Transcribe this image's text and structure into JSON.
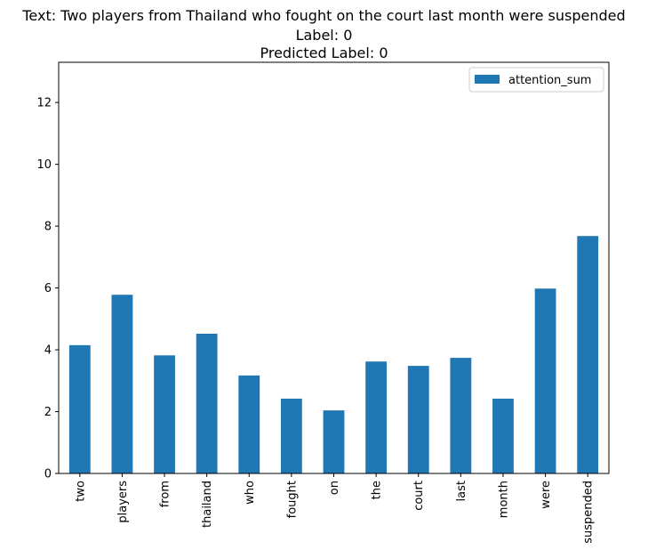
{
  "titles": {
    "line1": "Text: Two players from Thailand who fought on the court last month were suspended",
    "line2": "Label: 0",
    "line3": "Predicted Label: 0"
  },
  "chart_data": {
    "type": "bar",
    "categories": [
      "two",
      "players",
      "from",
      "thailand",
      "who",
      "fought",
      "on",
      "the",
      "court",
      "last",
      "month",
      "were",
      "suspended"
    ],
    "series": [
      {
        "name": "attention_sum",
        "values": [
          4.15,
          5.78,
          3.82,
          4.52,
          3.17,
          2.42,
          2.04,
          3.62,
          3.48,
          3.74,
          2.42,
          5.98,
          7.68
        ]
      }
    ],
    "ylim": [
      0,
      13.3
    ],
    "yticks": [
      0,
      2,
      4,
      6,
      8,
      10,
      12
    ],
    "legend_position": "top-right",
    "grid": false,
    "bar_color": "#1f77b4"
  }
}
